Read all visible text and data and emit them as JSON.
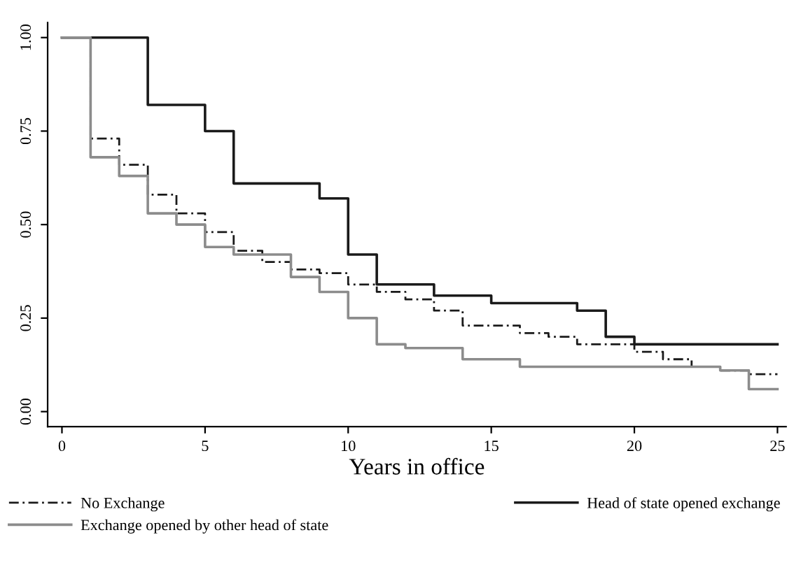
{
  "chart_data": {
    "type": "step",
    "xlabel": "Years in office",
    "xlim": [
      -0.5,
      25.3
    ],
    "xticks": [
      0,
      5,
      10,
      15,
      20,
      25
    ],
    "ylim": [
      -0.04,
      1.04
    ],
    "yticks": [
      {
        "value": 0,
        "label": "0.00"
      },
      {
        "value": 0.25,
        "label": "0.25"
      },
      {
        "value": 0.5,
        "label": "0.50"
      },
      {
        "value": 0.75,
        "label": "0.75"
      },
      {
        "value": 1,
        "label": "1.00"
      }
    ],
    "grid": false,
    "legend": "bottom",
    "series": [
      {
        "name": "No Exchange",
        "color": "#1a1a1a",
        "line_style": "dashed",
        "x": [
          0,
          1,
          2,
          3,
          4,
          5,
          6,
          7,
          8,
          9,
          10,
          11,
          12,
          13,
          14,
          15,
          16,
          17,
          18,
          19,
          20,
          21,
          22,
          23,
          24,
          25
        ],
        "values": [
          1.0,
          0.73,
          0.66,
          0.58,
          0.53,
          0.48,
          0.43,
          0.4,
          0.38,
          0.37,
          0.34,
          0.32,
          0.3,
          0.27,
          0.23,
          0.23,
          0.21,
          0.2,
          0.18,
          0.18,
          0.16,
          0.14,
          0.12,
          0.11,
          0.1,
          0.1
        ]
      },
      {
        "name": "Head of state opened exchange",
        "color": "#1a1a1a",
        "line_style": "solid",
        "x": [
          0,
          3,
          5,
          6,
          9,
          10,
          11,
          13,
          15,
          18,
          19,
          20,
          25
        ],
        "values": [
          1.0,
          0.82,
          0.75,
          0.61,
          0.57,
          0.42,
          0.34,
          0.31,
          0.29,
          0.27,
          0.2,
          0.18,
          0.18
        ]
      },
      {
        "name": "Exchange opened by other head of state",
        "color": "#8c8c8c",
        "line_style": "solid",
        "x": [
          0,
          1,
          2,
          3,
          4,
          5,
          6,
          8,
          9,
          10,
          11,
          12,
          14,
          16,
          23,
          24,
          25
        ],
        "values": [
          1.0,
          0.68,
          0.63,
          0.53,
          0.5,
          0.44,
          0.42,
          0.36,
          0.32,
          0.25,
          0.18,
          0.17,
          0.14,
          0.12,
          0.11,
          0.06,
          0.06
        ]
      }
    ]
  }
}
